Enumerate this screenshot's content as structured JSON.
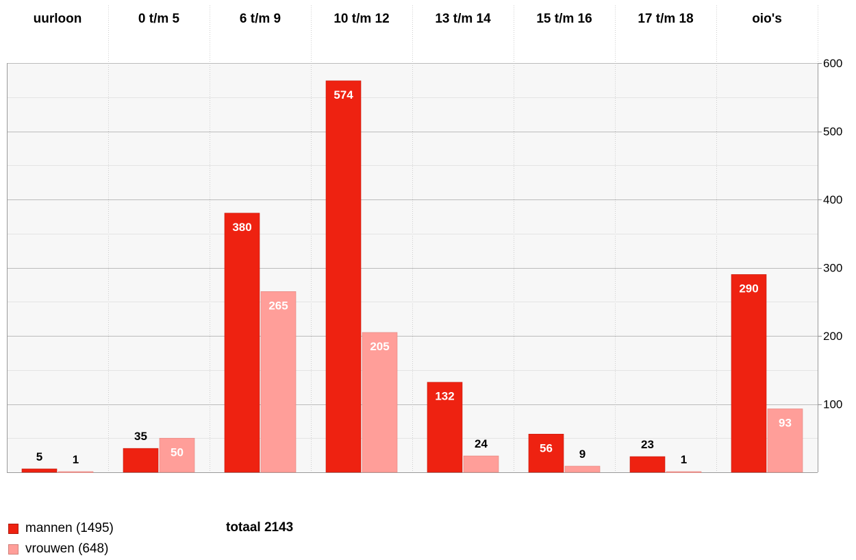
{
  "colors": {
    "mannen": "#ee2211",
    "vrouwen": "#ff9e99",
    "grid_major": "#bbbbbb",
    "grid_minor": "#e4e4e4",
    "plot_bg": "#f7f7f7"
  },
  "legend": {
    "mannen": "mannen (1495)",
    "vrouwen": "vrouwen (648)",
    "total": "totaal 2143"
  },
  "chart_data": {
    "type": "bar",
    "categories": [
      "uurloon",
      "0 t/m 5",
      "6 t/m 9",
      "10 t/m 12",
      "13 t/m 14",
      "15 t/m 16",
      "17 t/m 18",
      "oio's"
    ],
    "series": [
      {
        "name": "mannen (1495)",
        "values": [
          5,
          35,
          380,
          574,
          132,
          56,
          23,
          290
        ]
      },
      {
        "name": "vrouwen (648)",
        "values": [
          1,
          50,
          265,
          205,
          24,
          9,
          1,
          93
        ]
      }
    ],
    "ylim": [
      0,
      600
    ],
    "yticks": [
      "100",
      "200",
      "300",
      "400",
      "500",
      "600"
    ],
    "grid": true,
    "legend_position": "bottom-left"
  }
}
